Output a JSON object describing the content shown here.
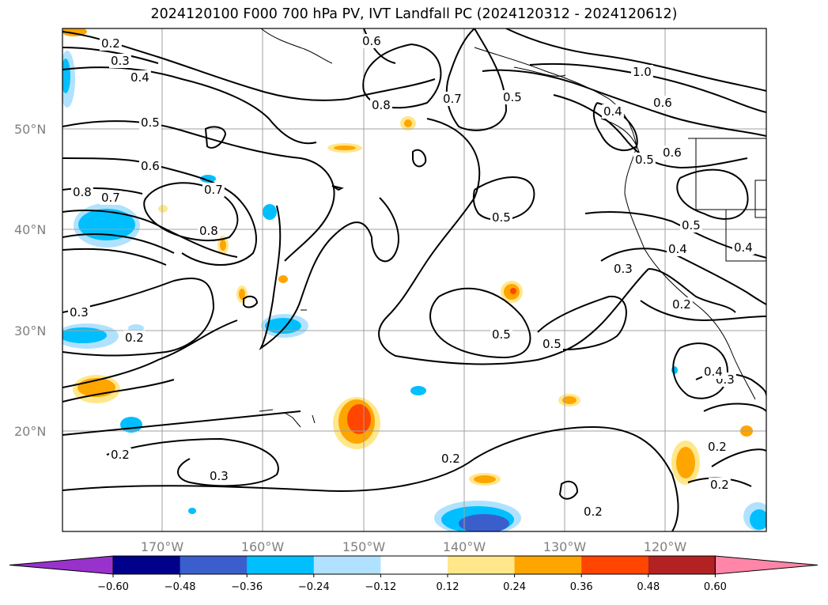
{
  "title": "2024120100 F000 700 hPa PV, IVT Landfall PC (2024120312 - 2024120612)",
  "map": {
    "lat_labels": [
      "50°N",
      "40°N",
      "30°N",
      "20°N"
    ],
    "lon_labels": [
      "170°W",
      "160°W",
      "150°W",
      "140°W",
      "130°W",
      "120°W"
    ],
    "contour_labels": [
      "0.2",
      "0.3",
      "0.4",
      "0.5",
      "0.6",
      "0.7",
      "0.8",
      "0.8",
      "0.6",
      "0.7",
      "0.5",
      "0.4",
      "1.0",
      "0.6",
      "0.6",
      "0.5",
      "0.5",
      "0.7",
      "0.8",
      "0.5",
      "0.4",
      "0.3",
      "0.3",
      "0.2",
      "0.5",
      "0.5",
      "0.2",
      "0.4",
      "0.3",
      "0.2",
      "0.2",
      "0.2",
      "0.3",
      "0.2",
      "0.2",
      "0.4"
    ]
  },
  "colorbar": {
    "ticks": [
      "−0.60",
      "−0.48",
      "−0.36",
      "−0.24",
      "−0.12",
      "0.12",
      "0.24",
      "0.36",
      "0.48",
      "0.60"
    ],
    "colors": [
      "#9932cc",
      "#00008b",
      "#3a5fcd",
      "#00bfff",
      "#b0e2ff",
      "#ffffff",
      "#ffe78a",
      "#ffa500",
      "#ff4500",
      "#b22222",
      "#ff86a8"
    ]
  }
}
